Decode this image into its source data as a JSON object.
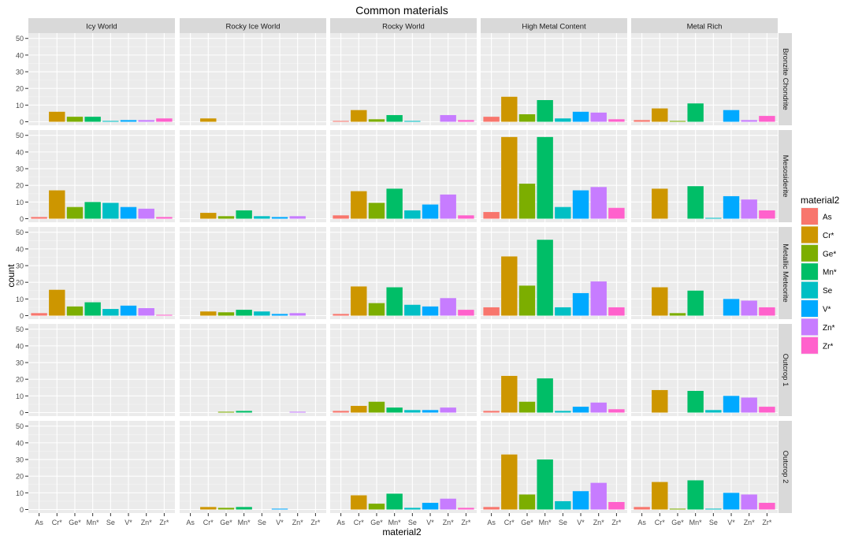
{
  "chart_data": {
    "type": "bar",
    "title": "Common materials",
    "xlabel": "material2",
    "ylabel": "count",
    "ylim": [
      0,
      52
    ],
    "yticks": [
      0,
      10,
      20,
      30,
      40,
      50
    ],
    "categories": [
      "As",
      "Cr*",
      "Ge*",
      "Mn*",
      "Se",
      "V*",
      "Zn*",
      "Zr*"
    ],
    "colors": [
      "#F8766D",
      "#CD9600",
      "#7CAE00",
      "#00BE67",
      "#00BFC4",
      "#00A9FF",
      "#C77CFF",
      "#FF61CC"
    ],
    "legend": {
      "title": "material2",
      "position": "right",
      "entries": [
        "As",
        "Cr*",
        "Ge*",
        "Mn*",
        "Se",
        "V*",
        "Zn*",
        "Zr*"
      ]
    },
    "facet_columns": [
      "Icy World",
      "Rocky Ice World",
      "Rocky World",
      "High Metal Content",
      "Metal Rich"
    ],
    "facet_rows": [
      "Bronzite Chondrite",
      "Mesosiderite",
      "Metallic Meteorite",
      "Outcrop 1",
      "Outcrop 2"
    ],
    "grid": true,
    "panels": [
      [
        [
          0,
          6,
          3,
          3,
          0.5,
          1,
          1,
          2
        ],
        [
          0,
          2,
          0,
          0,
          0,
          0,
          0,
          0
        ],
        [
          0.5,
          7,
          1.5,
          4,
          0.5,
          0,
          4,
          1
        ],
        [
          3,
          15,
          4.5,
          13,
          2,
          6,
          5.5,
          1.5
        ],
        [
          1,
          8,
          0.5,
          11,
          0,
          7,
          1,
          3.5
        ]
      ],
      [
        [
          1,
          17,
          7,
          10,
          9.5,
          7,
          6,
          1
        ],
        [
          0,
          3.5,
          1.5,
          5,
          1.5,
          1,
          1.5,
          0
        ],
        [
          2,
          16.5,
          9.5,
          18,
          5,
          8.5,
          14.5,
          2
        ],
        [
          4,
          49,
          21,
          49,
          7,
          17,
          19,
          6.5
        ],
        [
          0,
          18,
          0,
          19.5,
          0.5,
          13.5,
          11.5,
          5
        ]
      ],
      [
        [
          1.5,
          15.5,
          5.5,
          8,
          4,
          6,
          4.5,
          0.5
        ],
        [
          0,
          2.5,
          2,
          3.5,
          2.5,
          1,
          1.5,
          0
        ],
        [
          1,
          17.5,
          7.5,
          17,
          6.5,
          5.5,
          10.5,
          3.5
        ],
        [
          5,
          35.5,
          18,
          45.5,
          5,
          13.5,
          20.5,
          5
        ],
        [
          0,
          17,
          1.5,
          15,
          0,
          10,
          9,
          5
        ]
      ],
      [
        [
          0,
          0,
          0,
          0,
          0,
          0,
          0,
          0
        ],
        [
          0,
          0,
          0.5,
          1,
          0,
          0,
          0.5,
          0
        ],
        [
          1,
          4,
          6.5,
          3,
          1.5,
          1.5,
          3,
          0
        ],
        [
          1,
          22,
          6.5,
          20.5,
          1,
          3.5,
          6,
          2
        ],
        [
          0,
          13.5,
          0,
          13,
          1.5,
          10,
          9,
          3.5
        ]
      ],
      [
        [
          0,
          0,
          0,
          0,
          0,
          0,
          0,
          0
        ],
        [
          0,
          1.5,
          1,
          1.5,
          0,
          0.5,
          0,
          0
        ],
        [
          0,
          8.5,
          3.5,
          9.5,
          1,
          4,
          6.5,
          1
        ],
        [
          1.5,
          33,
          9,
          30,
          5,
          11,
          16,
          4.5
        ],
        [
          1.5,
          16.5,
          0.5,
          17.5,
          0.5,
          10,
          9,
          4
        ]
      ]
    ]
  }
}
